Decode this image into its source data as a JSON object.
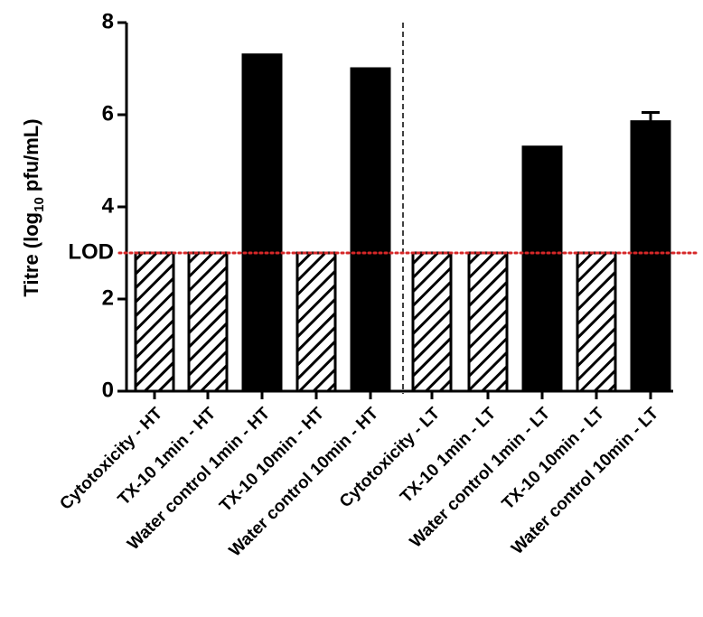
{
  "chart_data": {
    "type": "bar",
    "y_label": {
      "main": "Titre (log",
      "sub": "10",
      "tail": " pfu/mL)"
    },
    "categories": [
      "Cytotoxicity - HT",
      "TX-10 1min - HT",
      "Water control 1min - HT",
      "TX-10 10min - HT",
      "Water control 10min - HT",
      "Cytotoxicity - LT",
      "TX-10 1min - LT",
      "Water control 1min - LT",
      "TX-10 10min - LT",
      "Water control 10min - LT"
    ],
    "values": [
      3,
      3,
      7.3,
      3,
      7.0,
      3,
      3,
      5.3,
      3,
      5.85
    ],
    "errors": [
      null,
      null,
      null,
      null,
      null,
      null,
      null,
      null,
      null,
      0.2
    ],
    "fills": [
      "hatch",
      "hatch",
      "solid",
      "hatch",
      "solid",
      "hatch",
      "hatch",
      "solid",
      "hatch",
      "solid"
    ],
    "color": "#000000",
    "ylim": [
      0,
      8
    ],
    "yticks": [
      0,
      2,
      4,
      6,
      8
    ],
    "reference_line": {
      "value": 3,
      "label": "LOD",
      "color": "#d62728"
    }
  }
}
